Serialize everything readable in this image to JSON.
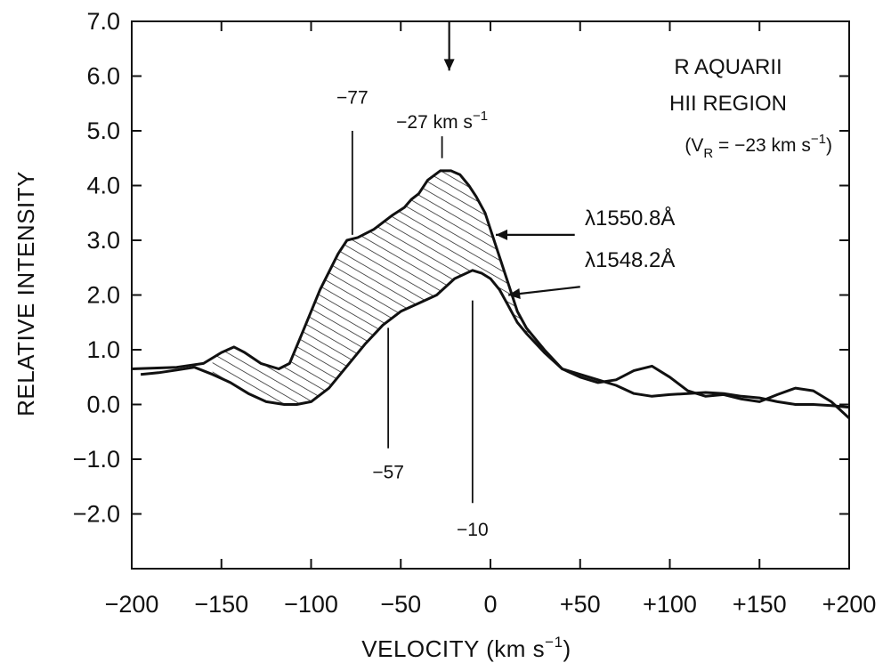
{
  "chart_data": {
    "type": "line",
    "title_lines": [
      "R AQUARII",
      "HII REGION"
    ],
    "subtitle_parts": {
      "open": "(V",
      "sub": "R",
      "mid": " = −23 km s",
      "sup": "−1",
      "close": ")"
    },
    "xlabel_parts": {
      "main": "VELOCITY (km s",
      "sup": "−1",
      "close": ")"
    },
    "ylabel": "RELATIVE INTENSITY",
    "xlim": [
      -200,
      200
    ],
    "ylim": [
      -3.0,
      7.0
    ],
    "xticks": [
      -200,
      -150,
      -100,
      -50,
      0,
      50,
      100,
      150,
      200
    ],
    "xtick_labels": [
      "−200",
      "−150",
      "−100",
      "−50",
      "0",
      "+50",
      "+100",
      "+150",
      "+200"
    ],
    "yticks": [
      7.0,
      6.0,
      5.0,
      4.0,
      3.0,
      2.0,
      1.0,
      0.0,
      -1.0,
      -2.0
    ],
    "ytick_labels": [
      "7.0",
      "6.0",
      "5.0",
      "4.0",
      "3.0",
      "2.0",
      "1.0",
      "0.0",
      "−1.0",
      "−2.0"
    ],
    "grid": false,
    "shaded_region": "between series",
    "series": [
      {
        "name": "λ1550.8Å",
        "label_parts": {
          "pre": "λ1550.8",
          "unit": "Å"
        },
        "x": [
          -200,
          -175,
          -160,
          -150,
          -143,
          -137,
          -128,
          -118,
          -112,
          -105,
          -95,
          -85,
          -80,
          -74,
          -65,
          -55,
          -48,
          -44,
          -40,
          -35,
          -28,
          -22,
          -17,
          -12,
          -8,
          -3,
          0,
          5,
          10,
          15,
          20,
          30,
          40,
          50,
          60,
          70,
          80,
          90,
          100,
          110,
          120,
          130,
          140,
          150,
          160,
          170,
          180,
          190,
          200
        ],
        "y": [
          0.65,
          0.68,
          0.75,
          0.95,
          1.05,
          0.95,
          0.75,
          0.65,
          0.75,
          1.3,
          2.1,
          2.75,
          3.0,
          3.05,
          3.2,
          3.45,
          3.6,
          3.75,
          3.85,
          4.1,
          4.27,
          4.27,
          4.2,
          4.0,
          3.8,
          3.5,
          3.2,
          2.7,
          2.2,
          1.7,
          1.4,
          1.0,
          0.65,
          0.5,
          0.4,
          0.45,
          0.62,
          0.7,
          0.5,
          0.25,
          0.15,
          0.18,
          0.1,
          0.05,
          0.18,
          0.3,
          0.25,
          0.05,
          -0.25
        ]
      },
      {
        "name": "λ1548.2Å",
        "label_parts": {
          "pre": "λ1548.2",
          "unit": "Å"
        },
        "x": [
          -195,
          -185,
          -175,
          -165,
          -155,
          -145,
          -135,
          -125,
          -115,
          -108,
          -100,
          -90,
          -80,
          -70,
          -60,
          -50,
          -40,
          -30,
          -20,
          -10,
          -5,
          0,
          5,
          10,
          15,
          20,
          30,
          40,
          50,
          60,
          70,
          80,
          90,
          100,
          110,
          120,
          130,
          140,
          150,
          160,
          170,
          180,
          190,
          200
        ],
        "y": [
          0.55,
          0.58,
          0.63,
          0.68,
          0.55,
          0.4,
          0.2,
          0.05,
          0.0,
          0.0,
          0.05,
          0.3,
          0.7,
          1.1,
          1.45,
          1.7,
          1.85,
          2.0,
          2.3,
          2.45,
          2.4,
          2.3,
          2.1,
          1.8,
          1.5,
          1.3,
          0.95,
          0.65,
          0.55,
          0.45,
          0.35,
          0.2,
          0.15,
          0.18,
          0.2,
          0.22,
          0.2,
          0.15,
          0.12,
          0.05,
          0.0,
          0.0,
          -0.02,
          -0.05
        ]
      }
    ],
    "velocity_markers": [
      {
        "x": -77,
        "label": "−77",
        "y_from": 3.1,
        "y_to": 5.0,
        "label_y": 5.5,
        "label_pos": "above"
      },
      {
        "x": -27,
        "label": "−27 km s",
        "label_sup": "−1",
        "y_from": 4.5,
        "y_to": 4.9,
        "label_y": 5.05,
        "label_pos": "above"
      },
      {
        "x": -57,
        "label": "−57",
        "y_from": 1.4,
        "y_to": -0.8,
        "label_y": -1.35,
        "label_pos": "below"
      },
      {
        "x": -10,
        "label": "−10",
        "y_from": 1.9,
        "y_to": -1.8,
        "label_y": -2.4,
        "label_pos": "below"
      }
    ],
    "systemic_arrow": {
      "x": -23,
      "y_from": 7.0,
      "y_to": 6.1
    },
    "series_label_arrows": [
      {
        "series": 0,
        "label_at": [
          52,
          3.3
        ],
        "arrow_from": [
          47,
          3.1
        ],
        "arrow_to": [
          3,
          3.1
        ]
      },
      {
        "series": 1,
        "label_at": [
          55,
          2.35
        ],
        "arrow_from": [
          50,
          2.15
        ],
        "arrow_to": [
          10,
          2.0
        ]
      }
    ]
  }
}
